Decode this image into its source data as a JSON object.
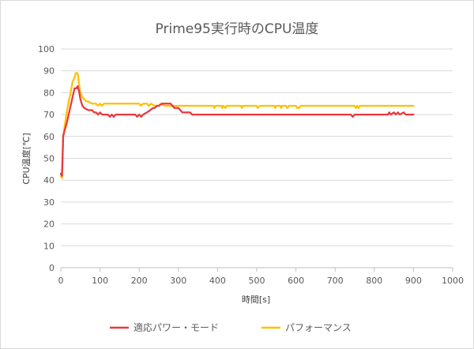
{
  "chart_data": {
    "type": "line",
    "title": "Prime95実行時のCPU温度",
    "xlabel": "時間[s]",
    "ylabel": "CPU温度[℃]",
    "xlim": [
      0,
      1000
    ],
    "ylim": [
      0,
      100
    ],
    "x_ticks": [
      0,
      100,
      200,
      300,
      400,
      500,
      600,
      700,
      800,
      900,
      1000
    ],
    "y_ticks": [
      0,
      10,
      20,
      30,
      40,
      50,
      60,
      70,
      80,
      90,
      100
    ],
    "grid": true,
    "legend_position": "bottom",
    "series": [
      {
        "name": "適応パワー・モード",
        "color": "#e8383d",
        "points": [
          [
            0,
            43
          ],
          [
            3,
            42
          ],
          [
            6,
            60
          ],
          [
            10,
            63
          ],
          [
            15,
            66
          ],
          [
            20,
            70
          ],
          [
            25,
            74
          ],
          [
            30,
            78
          ],
          [
            35,
            82
          ],
          [
            40,
            82
          ],
          [
            43,
            83
          ],
          [
            46,
            81
          ],
          [
            50,
            77
          ],
          [
            55,
            74
          ],
          [
            60,
            73
          ],
          [
            70,
            72
          ],
          [
            80,
            72
          ],
          [
            85,
            71
          ],
          [
            90,
            71
          ],
          [
            95,
            70
          ],
          [
            100,
            71
          ],
          [
            105,
            70
          ],
          [
            120,
            70
          ],
          [
            125,
            69
          ],
          [
            130,
            70
          ],
          [
            135,
            69
          ],
          [
            140,
            70
          ],
          [
            190,
            70
          ],
          [
            195,
            69
          ],
          [
            200,
            70
          ],
          [
            205,
            69
          ],
          [
            210,
            70
          ],
          [
            220,
            71
          ],
          [
            228,
            72
          ],
          [
            235,
            73
          ],
          [
            240,
            73
          ],
          [
            245,
            74
          ],
          [
            250,
            74
          ],
          [
            258,
            75
          ],
          [
            265,
            75
          ],
          [
            280,
            75
          ],
          [
            285,
            74
          ],
          [
            290,
            73
          ],
          [
            300,
            73
          ],
          [
            305,
            72
          ],
          [
            310,
            71
          ],
          [
            330,
            71
          ],
          [
            335,
            70
          ],
          [
            740,
            70
          ],
          [
            745,
            69
          ],
          [
            750,
            70
          ],
          [
            835,
            70
          ],
          [
            838,
            71
          ],
          [
            842,
            70
          ],
          [
            850,
            71
          ],
          [
            855,
            70
          ],
          [
            860,
            71
          ],
          [
            865,
            70
          ],
          [
            875,
            71
          ],
          [
            880,
            70
          ],
          [
            900,
            70
          ]
        ]
      },
      {
        "name": "パフォーマンス",
        "color": "#ffc000",
        "points": [
          [
            0,
            42
          ],
          [
            3,
            41
          ],
          [
            6,
            60
          ],
          [
            10,
            65
          ],
          [
            15,
            71
          ],
          [
            20,
            76
          ],
          [
            25,
            80
          ],
          [
            30,
            85
          ],
          [
            35,
            87
          ],
          [
            38,
            89
          ],
          [
            42,
            89
          ],
          [
            44,
            88
          ],
          [
            46,
            84
          ],
          [
            50,
            80
          ],
          [
            55,
            78
          ],
          [
            60,
            77
          ],
          [
            65,
            76
          ],
          [
            70,
            76
          ],
          [
            80,
            75
          ],
          [
            90,
            75
          ],
          [
            95,
            74
          ],
          [
            100,
            75
          ],
          [
            105,
            74
          ],
          [
            110,
            75
          ],
          [
            200,
            75
          ],
          [
            205,
            74
          ],
          [
            210,
            75
          ],
          [
            220,
            75
          ],
          [
            225,
            74
          ],
          [
            230,
            75
          ],
          [
            240,
            74
          ],
          [
            250,
            74
          ],
          [
            255,
            75
          ],
          [
            265,
            74
          ],
          [
            300,
            74
          ],
          [
            390,
            74
          ],
          [
            392,
            73
          ],
          [
            395,
            74
          ],
          [
            410,
            74
          ],
          [
            412,
            73
          ],
          [
            415,
            74
          ],
          [
            420,
            73
          ],
          [
            423,
            74
          ],
          [
            460,
            74
          ],
          [
            462,
            73
          ],
          [
            465,
            74
          ],
          [
            500,
            74
          ],
          [
            502,
            73
          ],
          [
            508,
            74
          ],
          [
            545,
            74
          ],
          [
            547,
            73
          ],
          [
            550,
            74
          ],
          [
            560,
            74
          ],
          [
            562,
            73
          ],
          [
            565,
            74
          ],
          [
            575,
            74
          ],
          [
            578,
            73
          ],
          [
            582,
            74
          ],
          [
            600,
            74
          ],
          [
            603,
            73
          ],
          [
            608,
            73
          ],
          [
            612,
            74
          ],
          [
            750,
            74
          ],
          [
            753,
            73
          ],
          [
            756,
            74
          ],
          [
            760,
            73
          ],
          [
            763,
            74
          ],
          [
            900,
            74
          ]
        ]
      }
    ]
  }
}
